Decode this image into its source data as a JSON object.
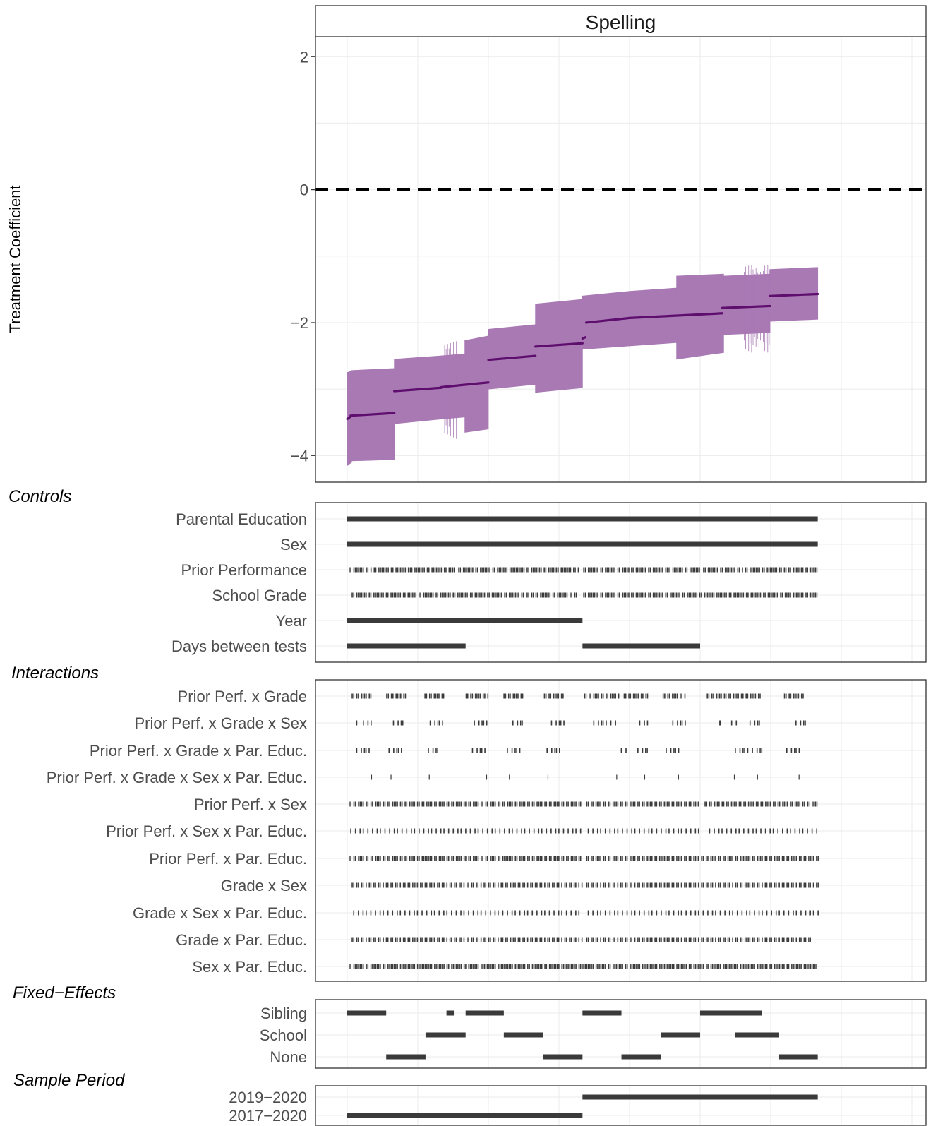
{
  "chart_data": {
    "type": "line",
    "facet_title": "Spelling",
    "ylabel": "Treatment Coefficient",
    "xlabel": "",
    "ylim": [
      -4.4,
      2.3
    ],
    "yticks": [
      2,
      0,
      -2,
      -4
    ],
    "ytick_labels": [
      "2",
      "0",
      "−2",
      "−4"
    ],
    "reference_line": {
      "y": 0,
      "style": "dashed"
    },
    "n_specifications": 1536,
    "colors": {
      "estimate_line": "#5e0f6e",
      "interval_fill": "#a979b4",
      "indicator_mark": "#3a3a3a"
    },
    "estimate_segments": [
      {
        "x": [
          0,
          8
        ],
        "y": [
          -3.45,
          -3.42
        ]
      },
      {
        "x": [
          9,
          128
        ],
        "y": [
          -3.4,
          -3.36
        ]
      },
      {
        "x": [
          128,
          256
        ],
        "y": [
          -3.03,
          -2.98
        ]
      },
      {
        "x": [
          256,
          384
        ],
        "y": [
          -2.97,
          -2.9
        ]
      },
      {
        "x": [
          384,
          512
        ],
        "y": [
          -2.56,
          -2.5
        ]
      },
      {
        "x": [
          512,
          640
        ],
        "y": [
          -2.36,
          -2.31
        ]
      },
      {
        "x": [
          640,
          648
        ],
        "y": [
          -2.24,
          -2.22
        ]
      },
      {
        "x": [
          650,
          768
        ],
        "y": [
          -2.0,
          -1.93
        ]
      },
      {
        "x": [
          768,
          1020
        ],
        "y": [
          -1.93,
          -1.86
        ]
      },
      {
        "x": [
          1020,
          1150
        ],
        "y": [
          -1.78,
          -1.75
        ]
      },
      {
        "x": [
          1150,
          1280
        ],
        "y": [
          -1.6,
          -1.57
        ]
      }
    ],
    "interval_blocks": [
      {
        "x": [
          0,
          12
        ],
        "lower": [
          -4.15,
          -4.1
        ],
        "upper": [
          -2.75,
          -2.73
        ]
      },
      {
        "x": [
          12,
          128
        ],
        "lower": [
          -4.08,
          -4.06
        ],
        "upper": [
          -2.72,
          -2.69
        ]
      },
      {
        "x": [
          128,
          256
        ],
        "lower": [
          -3.52,
          -3.45
        ],
        "upper": [
          -2.55,
          -2.5
        ]
      },
      {
        "x": [
          256,
          320
        ],
        "lower": [
          -3.45,
          -3.42
        ],
        "upper": [
          -2.5,
          -2.47
        ]
      },
      {
        "x": [
          320,
          384
        ],
        "lower": [
          -3.65,
          -3.6
        ],
        "upper": [
          -2.27,
          -2.2
        ]
      },
      {
        "x": [
          384,
          512
        ],
        "lower": [
          -3.0,
          -2.93
        ],
        "upper": [
          -2.1,
          -2.03
        ]
      },
      {
        "x": [
          512,
          640
        ],
        "lower": [
          -3.05,
          -2.98
        ],
        "upper": [
          -1.72,
          -1.65
        ]
      },
      {
        "x": [
          640,
          768
        ],
        "lower": [
          -2.4,
          -2.35
        ],
        "upper": [
          -1.6,
          -1.53
        ]
      },
      {
        "x": [
          768,
          896
        ],
        "lower": [
          -2.35,
          -2.3
        ],
        "upper": [
          -1.53,
          -1.48
        ]
      },
      {
        "x": [
          896,
          1024
        ],
        "lower": [
          -2.55,
          -2.45
        ],
        "upper": [
          -1.3,
          -1.27
        ]
      },
      {
        "x": [
          1024,
          1150
        ],
        "lower": [
          -2.18,
          -2.15
        ],
        "upper": [
          -1.3,
          -1.27
        ]
      },
      {
        "x": [
          1150,
          1280
        ],
        "lower": [
          -1.98,
          -1.95
        ],
        "upper": [
          -1.2,
          -1.17
        ]
      }
    ],
    "indicator_panels": [
      {
        "title": "Controls",
        "rows": [
          {
            "label": "Parental Education",
            "segments": [
              [
                0,
                1280
              ]
            ],
            "density": 1.0
          },
          {
            "label": "Sex",
            "segments": [
              [
                0,
                1280
              ]
            ],
            "density": 1.0
          },
          {
            "label": "Prior Performance",
            "segments": [
              [
                4,
                66
              ],
              [
                72,
                166
              ],
              [
                170,
                280
              ],
              [
                285,
                296
              ],
              [
                302,
                482
              ],
              [
                488,
                566
              ],
              [
                568,
                630
              ],
              [
                642,
                768
              ],
              [
                772,
                870
              ],
              [
                872,
                960
              ],
              [
                968,
                1075
              ],
              [
                1082,
                1195
              ],
              [
                1200,
                1280
              ]
            ],
            "density": 0.85
          },
          {
            "label": "School Grade",
            "segments": [
              [
                12,
                188
              ],
              [
                194,
                325
              ],
              [
                334,
                484
              ],
              [
                488,
                508
              ],
              [
                512,
                625
              ],
              [
                642,
                768
              ],
              [
                772,
                1195
              ],
              [
                1200,
                1280
              ]
            ],
            "density": 0.8
          },
          {
            "label": "Year",
            "segments": [
              [
                0,
                640
              ]
            ],
            "density": 1.0
          },
          {
            "label": "Days between tests",
            "segments": [
              [
                0,
                322
              ],
              [
                640,
                960
              ]
            ],
            "density": 1.0
          }
        ]
      },
      {
        "title": "Interactions",
        "rows": [
          {
            "label": "Prior Perf. x Grade",
            "segments": [
              [
                12,
                66
              ],
              [
                106,
                162
              ],
              [
                210,
                262
              ],
              [
                322,
                385
              ],
              [
                425,
                477
              ],
              [
                535,
                592
              ],
              [
                644,
                740
              ],
              [
                752,
                816
              ],
              [
                858,
                918
              ],
              [
                978,
                1128
              ],
              [
                1188,
                1246
              ]
            ],
            "density": 0.75
          },
          {
            "label": "Prior Perf. x Grade x Sex",
            "segments": [
              [
                20,
                26
              ],
              [
                38,
                66
              ],
              [
                120,
                155
              ],
              [
                220,
                265
              ],
              [
                340,
                390
              ],
              [
                445,
                480
              ],
              [
                550,
                592
              ],
              [
                665,
                730
              ],
              [
                790,
                816
              ],
              [
                880,
                925
              ],
              [
                1012,
                1016
              ],
              [
                1040,
                1060
              ],
              [
                1090,
                1125
              ],
              [
                1215,
                1248
              ]
            ],
            "density": 0.5
          },
          {
            "label": "Prior Perf. x Grade x Par. Educ.",
            "segments": [
              [
                20,
                60
              ],
              [
                108,
                150
              ],
              [
                215,
                248
              ],
              [
                335,
                385
              ],
              [
                430,
                470
              ],
              [
                538,
                580
              ],
              [
                740,
                765
              ],
              [
                785,
                815
              ],
              [
                862,
                910
              ],
              [
                1050,
                1130
              ],
              [
                1190,
                1240
              ]
            ],
            "density": 0.5
          },
          {
            "label": "Prior Perf. x Grade x Sex x Par. Educ.",
            "segments": [
              [
                65,
                66
              ],
              [
                118,
                119
              ],
              [
                222,
                223
              ],
              [
                378,
                379
              ],
              [
                440,
                441
              ],
              [
                545,
                546
              ],
              [
                732,
                733
              ],
              [
                808,
                809
              ],
              [
                900,
                901
              ],
              [
                1052,
                1053
              ],
              [
                1115,
                1116
              ],
              [
                1228,
                1229
              ]
            ],
            "density": 1.0
          },
          {
            "label": "Prior Perf. x Sex",
            "segments": [
              [
                4,
                640
              ],
              [
                650,
                960
              ],
              [
                972,
                1280
              ]
            ],
            "density": 0.7
          },
          {
            "label": "Prior Perf. x Sex x Par. Educ.",
            "segments": [
              [
                4,
                640
              ],
              [
                650,
                960
              ],
              [
                980,
                1280
              ]
            ],
            "density": 0.35
          },
          {
            "label": "Prior Perf. x Par. Educ.",
            "segments": [
              [
                4,
                640
              ],
              [
                650,
                1280
              ]
            ],
            "density": 0.75
          },
          {
            "label": "Grade x Sex",
            "segments": [
              [
                12,
                640
              ],
              [
                650,
                1280
              ]
            ],
            "density": 0.65
          },
          {
            "label": "Grade x Sex x Par. Educ.",
            "segments": [
              [
                12,
                640
              ],
              [
                650,
                1280
              ]
            ],
            "density": 0.35
          },
          {
            "label": "Grade x Par. Educ.",
            "segments": [
              [
                12,
                640
              ],
              [
                650,
                1260
              ]
            ],
            "density": 0.65
          },
          {
            "label": "Sex x Par. Educ.",
            "segments": [
              [
                4,
                1276
              ]
            ],
            "density": 0.85
          }
        ]
      },
      {
        "title": "Fixed−Effects",
        "rows": [
          {
            "label": "Sibling",
            "segments": [
              [
                0,
                106
              ],
              [
                270,
                290
              ],
              [
                322,
                426
              ],
              [
                640,
                746
              ],
              [
                960,
                1055
              ],
              [
                1055,
                1128
              ]
            ],
            "density": 1.0
          },
          {
            "label": "School",
            "segments": [
              [
                213,
                322
              ],
              [
                426,
                533
              ],
              [
                853,
                960
              ],
              [
                1055,
                1175
              ]
            ],
            "density": 1.0
          },
          {
            "label": "None",
            "segments": [
              [
                106,
                213
              ],
              [
                533,
                640
              ],
              [
                746,
                853
              ],
              [
                1175,
                1280
              ]
            ],
            "density": 1.0
          }
        ]
      },
      {
        "title": "Sample Period",
        "rows": [
          {
            "label": "2019−2020",
            "segments": [
              [
                640,
                1280
              ]
            ],
            "density": 1.0
          },
          {
            "label": "2017−2020",
            "segments": [
              [
                0,
                640
              ]
            ],
            "density": 1.0
          }
        ]
      }
    ]
  }
}
